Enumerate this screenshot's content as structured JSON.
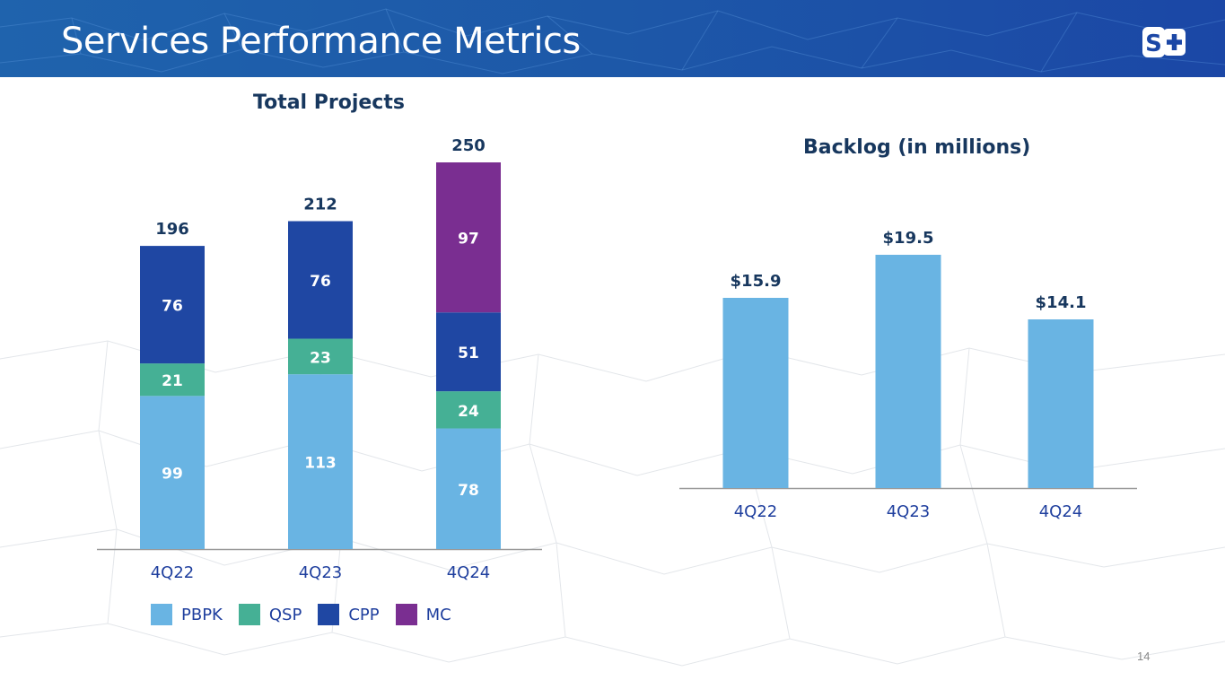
{
  "header": {
    "title": "Services Performance Metrics",
    "logo": "S+"
  },
  "page_number": "14",
  "colors": {
    "PBPK": "#69b4e3",
    "QSP": "#45b095",
    "CPP": "#1f47a3",
    "MC": "#7a2e91",
    "backlog": "#69b4e3",
    "title_text": "#17375e",
    "axis_text": "#1f3f9e"
  },
  "chart_data": [
    {
      "type": "bar",
      "stacked": true,
      "title": "Total Projects",
      "categories": [
        "4Q22",
        "4Q23",
        "4Q24"
      ],
      "series": [
        {
          "name": "PBPK",
          "values": [
            99,
            113,
            78
          ]
        },
        {
          "name": "QSP",
          "values": [
            21,
            23,
            24
          ]
        },
        {
          "name": "CPP",
          "values": [
            76,
            76,
            51
          ]
        },
        {
          "name": "MC",
          "values": [
            null,
            null,
            97
          ]
        }
      ],
      "totals": [
        196,
        212,
        250
      ],
      "xlabel": "",
      "ylabel": "",
      "ylim": [
        0,
        250
      ],
      "grid": false,
      "legend": "bottom"
    },
    {
      "type": "bar",
      "title": "Backlog (in millions)",
      "categories": [
        "4Q22",
        "4Q23",
        "4Q24"
      ],
      "values": [
        15.9,
        19.5,
        14.1
      ],
      "data_labels": [
        "$15.9",
        "$19.5",
        "$14.1"
      ],
      "xlabel": "",
      "ylabel": "",
      "ylim": [
        0,
        19.5
      ],
      "grid": false,
      "legend": "none"
    }
  ]
}
